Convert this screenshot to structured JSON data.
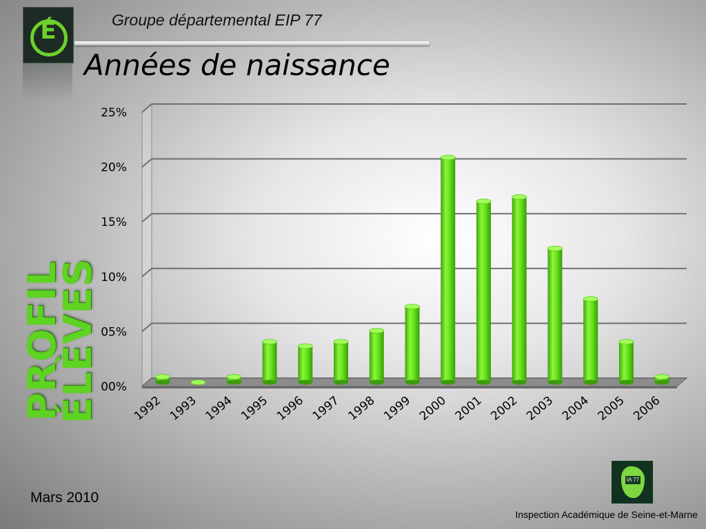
{
  "header": {
    "group": "Groupe départemental EIP 77",
    "title": "Années de naissance",
    "logo_glyph": "É"
  },
  "side_label": {
    "line1": "PROFIL",
    "line2": "ÉLÈVES"
  },
  "footer": {
    "date": "Mars 2010",
    "org": "Inspection Académique de Seine-et-Marne",
    "ia_logo_text": "IA 77"
  },
  "colors": {
    "bar": "#66e619",
    "accent": "#5ed321"
  },
  "chart_data": {
    "type": "bar",
    "categories": [
      "1992",
      "1993",
      "1994",
      "1995",
      "1996",
      "1997",
      "1998",
      "1999",
      "2000",
      "2001",
      "2002",
      "2003",
      "2004",
      "2005",
      "2006"
    ],
    "values": [
      0.5,
      0.0,
      0.5,
      3.7,
      3.3,
      3.7,
      4.7,
      6.9,
      20.5,
      16.5,
      16.9,
      12.2,
      7.6,
      3.7,
      0.5
    ],
    "yticks": [
      "00%",
      "05%",
      "10%",
      "15%",
      "20%",
      "25%"
    ],
    "ylim": [
      0,
      25
    ],
    "title": "",
    "xlabel": "",
    "ylabel": "",
    "grid": true,
    "legend": "none"
  }
}
